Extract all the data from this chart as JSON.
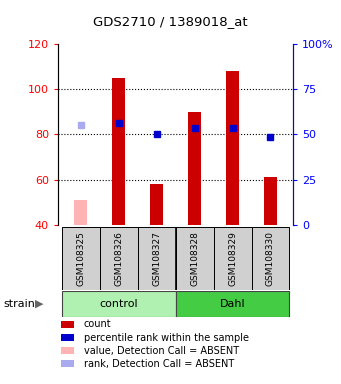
{
  "title": "GDS2710 / 1389018_at",
  "samples": [
    "GSM108325",
    "GSM108326",
    "GSM108327",
    "GSM108328",
    "GSM108329",
    "GSM108330"
  ],
  "bar_values": [
    51,
    105,
    58,
    90,
    108,
    61
  ],
  "bar_absent": [
    true,
    false,
    false,
    false,
    false,
    false
  ],
  "rank_values": [
    84,
    85,
    80,
    83,
    83,
    79
  ],
  "rank_absent": [
    true,
    false,
    false,
    false,
    false,
    false
  ],
  "ylim_left": [
    40,
    120
  ],
  "ylim_right": [
    0,
    100
  ],
  "yticks_left": [
    40,
    60,
    80,
    100,
    120
  ],
  "yticks_right": [
    0,
    25,
    50,
    75,
    100
  ],
  "ytick_labels_right": [
    "0",
    "25",
    "50",
    "75",
    "100%"
  ],
  "bar_color": "#cc0000",
  "bar_absent_color": "#ffb3b3",
  "rank_color": "#0000cc",
  "rank_absent_color": "#aaaaee",
  "control_label": "control",
  "dahl_label": "Dahl",
  "strain_label": "strain",
  "control_color": "#aaffaa",
  "dahl_color": "#44dd44",
  "legend_items": [
    {
      "color": "#cc0000",
      "label": "count"
    },
    {
      "color": "#0000cc",
      "label": "percentile rank within the sample"
    },
    {
      "color": "#ffb3b3",
      "label": "value, Detection Call = ABSENT"
    },
    {
      "color": "#aaaaee",
      "label": "rank, Detection Call = ABSENT"
    }
  ],
  "bar_width": 0.35
}
